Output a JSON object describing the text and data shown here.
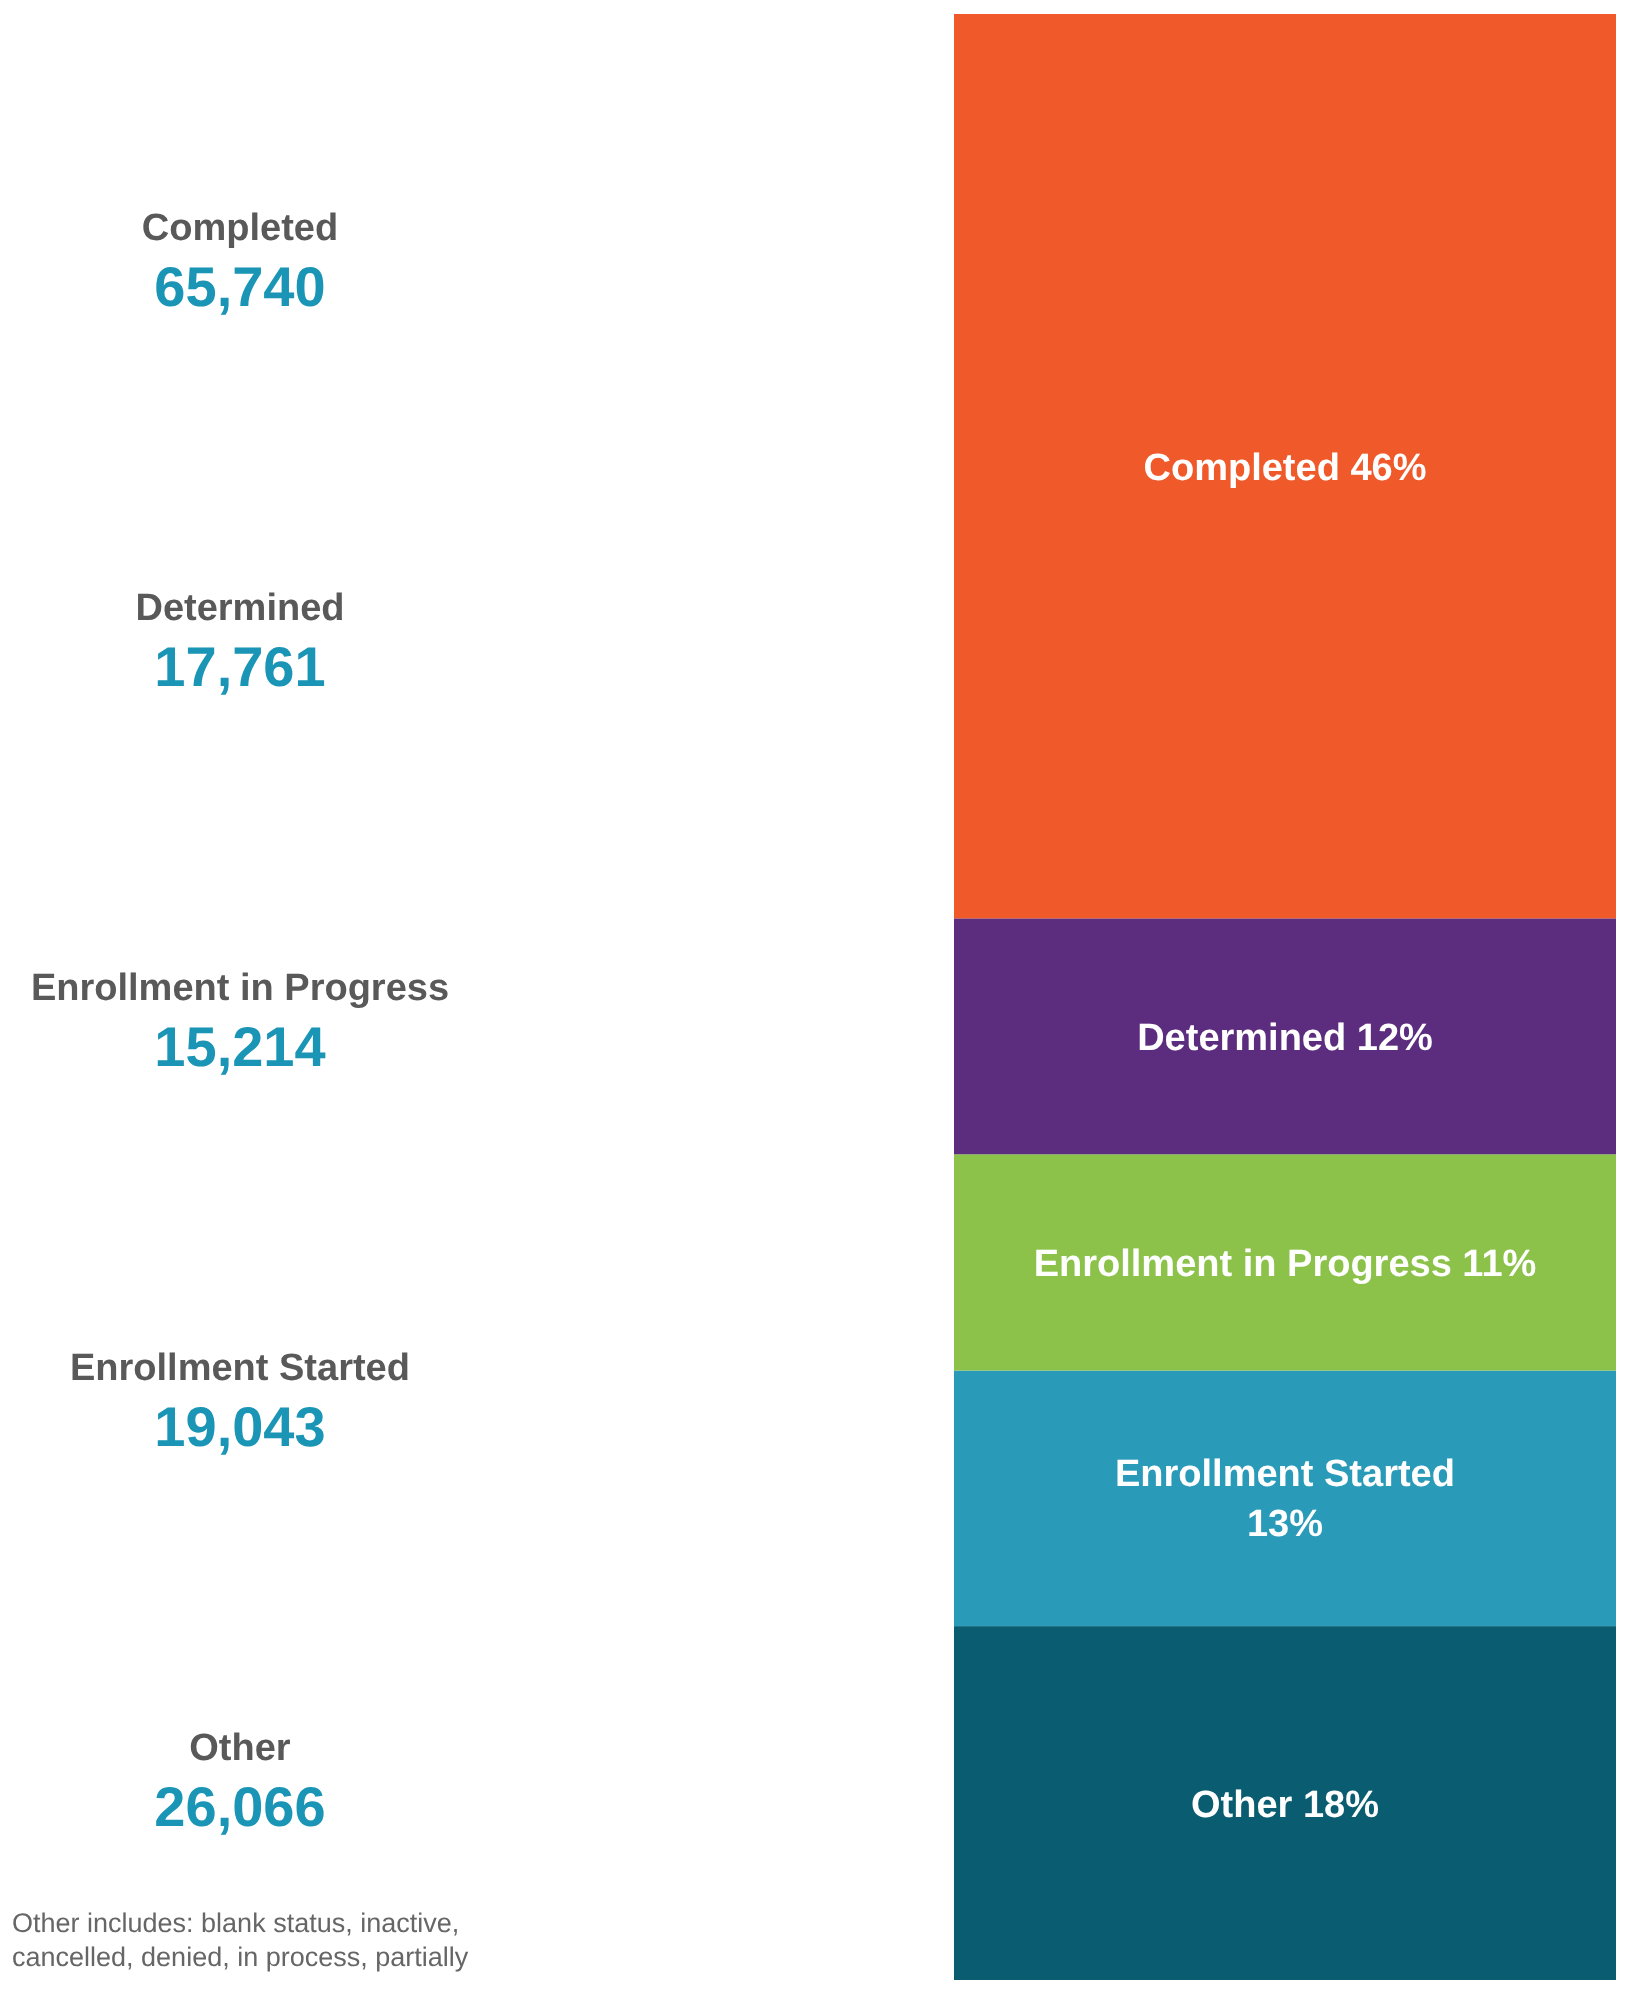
{
  "chart_data": [
    {
      "type": "bar",
      "stacked": true,
      "categories": [
        null
      ],
      "series": [
        {
          "name": "Other",
          "color": "#0a5c70",
          "values": [
            18
          ],
          "value_labels": [
            "18%"
          ]
        },
        {
          "name": "Enrollment Started",
          "color": "#2a9ab9",
          "values": [
            13
          ],
          "value_labels": [
            "13%"
          ]
        },
        {
          "name": "Enrollment in Progress",
          "color": "#8cc24a",
          "values": [
            11
          ],
          "value_labels": [
            "11%"
          ]
        },
        {
          "name": "Determined",
          "color": "#5c2d7e",
          "values": [
            12
          ],
          "value_labels": [
            "12%"
          ]
        },
        {
          "name": "Completed",
          "color": "#f05a2b",
          "values": [
            46
          ],
          "value_labels": [
            "46%"
          ]
        }
      ]
    },
    {
      "type": "other",
      "categories": [
        "Completed",
        "Determined",
        "Enrollment in Progress",
        "Enrollment Started",
        "Other"
      ],
      "value_labels": [
        "65,740",
        "17,761",
        "15,214",
        "19,043",
        "26,066"
      ],
      "annotations": [
        "Other includes: blank status, inactive, cancelled, denied, in process, partially"
      ]
    }
  ]
}
